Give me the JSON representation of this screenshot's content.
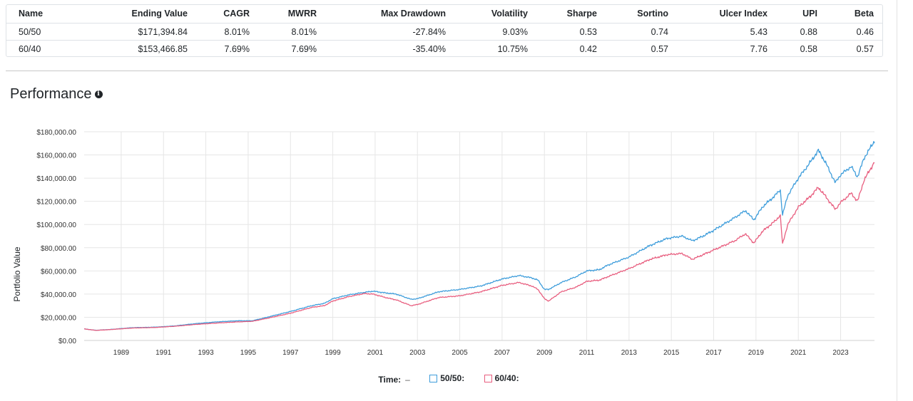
{
  "stats": {
    "columns": [
      "Name",
      "Ending Value",
      "CAGR",
      "MWRR",
      "Max Drawdown",
      "Volatility",
      "Sharpe",
      "Sortino",
      "Ulcer Index",
      "UPI",
      "Beta"
    ],
    "rows": [
      [
        "50/50",
        "$171,394.84",
        "8.01%",
        "8.01%",
        "-27.84%",
        "9.03%",
        "0.53",
        "0.74",
        "5.43",
        "0.88",
        "0.46"
      ],
      [
        "60/40",
        "$153,466.85",
        "7.69%",
        "7.69%",
        "-35.40%",
        "10.75%",
        "0.42",
        "0.57",
        "7.76",
        "0.58",
        "0.57"
      ]
    ]
  },
  "section_title": "Performance",
  "info_icon_glyph": "i",
  "chart_data": {
    "type": "line",
    "ylabel": "Portfolio Value",
    "ylim": [
      0,
      180000
    ],
    "xlim": [
      1987.25,
      2024.6
    ],
    "y_ticks": [
      "$0.00",
      "$20,000.00",
      "$40,000.00",
      "$60,000.00",
      "$80,000.00",
      "$100,000.00",
      "$120,000.00",
      "$140,000.00",
      "$160,000.00",
      "$180,000.00"
    ],
    "x_ticks": [
      "1989",
      "1991",
      "1993",
      "1995",
      "1997",
      "1999",
      "2001",
      "2003",
      "2005",
      "2007",
      "2009",
      "2011",
      "2013",
      "2015",
      "2017",
      "2019",
      "2021",
      "2023"
    ],
    "grid": true,
    "series": [
      {
        "name": "50/50",
        "color": "#3e9ddb",
        "points": [
          [
            1987.25,
            10000
          ],
          [
            1987.8,
            8800
          ],
          [
            1988.5,
            9500
          ],
          [
            1989.5,
            11000
          ],
          [
            1990.6,
            11500
          ],
          [
            1991.5,
            12500
          ],
          [
            1992.5,
            14500
          ],
          [
            1993.5,
            16000
          ],
          [
            1994.5,
            17000
          ],
          [
            1995.2,
            17000
          ],
          [
            1996.0,
            20500
          ],
          [
            1997.0,
            25000
          ],
          [
            1998.0,
            30000
          ],
          [
            1998.6,
            32000
          ],
          [
            1999.0,
            36000
          ],
          [
            1999.8,
            39500
          ],
          [
            2000.5,
            41500
          ],
          [
            2000.9,
            42500
          ],
          [
            2001.5,
            41000
          ],
          [
            2002.0,
            40000
          ],
          [
            2002.7,
            35500
          ],
          [
            2003.0,
            36000
          ],
          [
            2003.5,
            39000
          ],
          [
            2004.0,
            42000
          ],
          [
            2005.0,
            44000
          ],
          [
            2006.0,
            47000
          ],
          [
            2007.0,
            53000
          ],
          [
            2007.8,
            56000
          ],
          [
            2008.4,
            54000
          ],
          [
            2008.7,
            52000
          ],
          [
            2009.0,
            44000
          ],
          [
            2009.2,
            44000
          ],
          [
            2009.8,
            50000
          ],
          [
            2010.5,
            55000
          ],
          [
            2011.0,
            60000
          ],
          [
            2011.6,
            61000
          ],
          [
            2012.0,
            65000
          ],
          [
            2013.0,
            72000
          ],
          [
            2014.0,
            82000
          ],
          [
            2014.8,
            88000
          ],
          [
            2015.5,
            90000
          ],
          [
            2016.0,
            86000
          ],
          [
            2016.5,
            90000
          ],
          [
            2017.0,
            95000
          ],
          [
            2018.0,
            106000
          ],
          [
            2018.5,
            112000
          ],
          [
            2018.9,
            104000
          ],
          [
            2019.3,
            115000
          ],
          [
            2019.9,
            125000
          ],
          [
            2020.15,
            130000
          ],
          [
            2020.25,
            108000
          ],
          [
            2020.5,
            125000
          ],
          [
            2021.0,
            140000
          ],
          [
            2021.5,
            152000
          ],
          [
            2021.95,
            164000
          ],
          [
            2022.3,
            153000
          ],
          [
            2022.75,
            136000
          ],
          [
            2023.0,
            143000
          ],
          [
            2023.5,
            150000
          ],
          [
            2023.8,
            141000
          ],
          [
            2024.1,
            157000
          ],
          [
            2024.6,
            172000
          ]
        ]
      },
      {
        "name": "60/40",
        "color": "#e85e7f",
        "points": [
          [
            1987.25,
            10000
          ],
          [
            1987.8,
            8700
          ],
          [
            1988.5,
            9400
          ],
          [
            1989.5,
            10700
          ],
          [
            1990.6,
            11200
          ],
          [
            1991.5,
            12200
          ],
          [
            1992.5,
            13800
          ],
          [
            1993.5,
            15000
          ],
          [
            1994.5,
            16000
          ],
          [
            1995.2,
            16500
          ],
          [
            1996.0,
            19500
          ],
          [
            1997.0,
            23500
          ],
          [
            1998.0,
            28500
          ],
          [
            1998.6,
            30000
          ],
          [
            1999.0,
            34000
          ],
          [
            1999.8,
            38000
          ],
          [
            2000.5,
            40500
          ],
          [
            2000.9,
            40000
          ],
          [
            2001.5,
            37000
          ],
          [
            2002.0,
            35000
          ],
          [
            2002.7,
            30000
          ],
          [
            2003.0,
            31000
          ],
          [
            2003.5,
            34000
          ],
          [
            2004.0,
            37000
          ],
          [
            2005.0,
            38500
          ],
          [
            2006.0,
            42000
          ],
          [
            2007.0,
            47500
          ],
          [
            2007.8,
            50000
          ],
          [
            2008.4,
            47000
          ],
          [
            2008.7,
            44000
          ],
          [
            2009.0,
            36000
          ],
          [
            2009.2,
            34000
          ],
          [
            2009.8,
            42000
          ],
          [
            2010.5,
            46000
          ],
          [
            2011.0,
            51000
          ],
          [
            2011.6,
            52000
          ],
          [
            2012.0,
            55000
          ],
          [
            2013.0,
            62000
          ],
          [
            2014.0,
            70000
          ],
          [
            2014.8,
            74000
          ],
          [
            2015.5,
            75000
          ],
          [
            2016.0,
            70000
          ],
          [
            2016.5,
            74000
          ],
          [
            2017.0,
            78000
          ],
          [
            2018.0,
            86000
          ],
          [
            2018.5,
            92000
          ],
          [
            2018.9,
            84000
          ],
          [
            2019.3,
            94000
          ],
          [
            2019.9,
            103000
          ],
          [
            2020.15,
            108000
          ],
          [
            2020.25,
            83000
          ],
          [
            2020.5,
            100000
          ],
          [
            2021.0,
            115000
          ],
          [
            2021.5,
            123000
          ],
          [
            2021.95,
            132000
          ],
          [
            2022.3,
            124000
          ],
          [
            2022.75,
            113000
          ],
          [
            2023.0,
            119000
          ],
          [
            2023.5,
            127000
          ],
          [
            2023.8,
            120000
          ],
          [
            2024.1,
            138000
          ],
          [
            2024.6,
            154000
          ]
        ]
      }
    ]
  },
  "legend": {
    "time_label": "Time:",
    "time_value": "–",
    "items": [
      "50/50:",
      "60/40:"
    ]
  }
}
